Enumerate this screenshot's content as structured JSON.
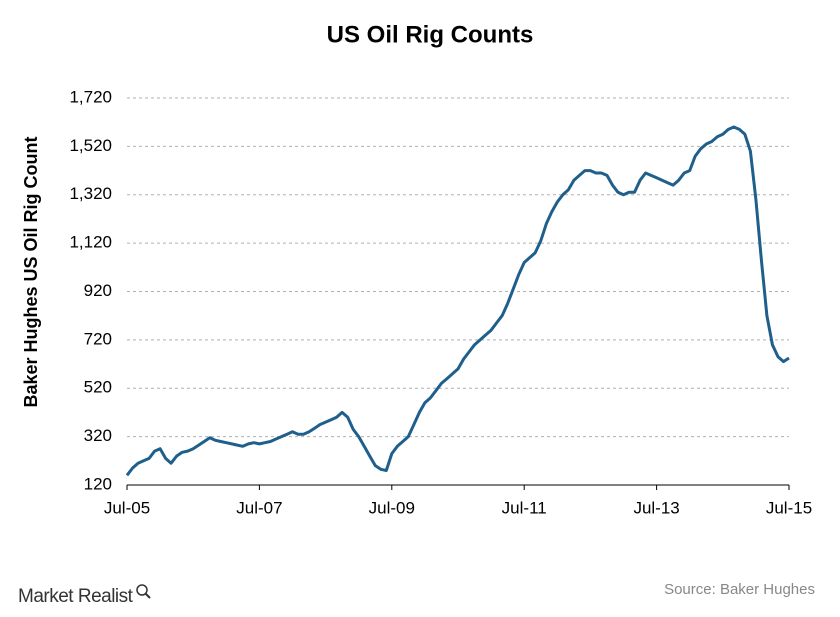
{
  "chart_data": {
    "type": "line",
    "title": "US Oil Rig Counts",
    "y_label": "Baker Hughes US Oil Rig Count",
    "x": [
      "2005-07",
      "2005-08",
      "2005-09",
      "2005-10",
      "2005-11",
      "2005-12",
      "2006-01",
      "2006-02",
      "2006-03",
      "2006-04",
      "2006-05",
      "2006-06",
      "2006-07",
      "2006-08",
      "2006-09",
      "2006-10",
      "2006-11",
      "2006-12",
      "2007-01",
      "2007-02",
      "2007-03",
      "2007-04",
      "2007-05",
      "2007-06",
      "2007-07",
      "2007-08",
      "2007-09",
      "2007-10",
      "2007-11",
      "2007-12",
      "2008-01",
      "2008-02",
      "2008-03",
      "2008-04",
      "2008-05",
      "2008-06",
      "2008-07",
      "2008-08",
      "2008-09",
      "2008-10",
      "2008-11",
      "2008-12",
      "2009-01",
      "2009-02",
      "2009-03",
      "2009-04",
      "2009-05",
      "2009-06",
      "2009-07",
      "2009-08",
      "2009-09",
      "2009-10",
      "2009-11",
      "2009-12",
      "2010-01",
      "2010-02",
      "2010-03",
      "2010-04",
      "2010-05",
      "2010-06",
      "2010-07",
      "2010-08",
      "2010-09",
      "2010-10",
      "2010-11",
      "2010-12",
      "2011-01",
      "2011-02",
      "2011-03",
      "2011-04",
      "2011-05",
      "2011-06",
      "2011-07",
      "2011-08",
      "2011-09",
      "2011-10",
      "2011-11",
      "2011-12",
      "2012-01",
      "2012-02",
      "2012-03",
      "2012-04",
      "2012-05",
      "2012-06",
      "2012-07",
      "2012-08",
      "2012-09",
      "2012-10",
      "2012-11",
      "2012-12",
      "2013-01",
      "2013-02",
      "2013-03",
      "2013-04",
      "2013-05",
      "2013-06",
      "2013-07",
      "2013-08",
      "2013-09",
      "2013-10",
      "2013-11",
      "2013-12",
      "2014-01",
      "2014-02",
      "2014-03",
      "2014-04",
      "2014-05",
      "2014-06",
      "2014-07",
      "2014-08",
      "2014-09",
      "2014-10",
      "2014-11",
      "2014-12",
      "2015-01",
      "2015-02",
      "2015-03",
      "2015-04",
      "2015-05",
      "2015-06",
      "2015-07"
    ],
    "series": [
      {
        "name": "Baker Hughes US Oil Rig Count",
        "color": "#1f5f8b",
        "values": [
          160,
          190,
          210,
          220,
          230,
          260,
          270,
          230,
          210,
          240,
          255,
          260,
          270,
          285,
          300,
          315,
          305,
          300,
          295,
          290,
          285,
          280,
          290,
          295,
          290,
          295,
          300,
          310,
          320,
          330,
          340,
          330,
          330,
          340,
          355,
          370,
          380,
          390,
          400,
          420,
          400,
          350,
          320,
          280,
          240,
          200,
          185,
          180,
          250,
          280,
          300,
          320,
          370,
          420,
          460,
          480,
          510,
          540,
          560,
          580,
          600,
          640,
          670,
          700,
          720,
          740,
          760,
          790,
          820,
          870,
          930,
          990,
          1040,
          1060,
          1080,
          1130,
          1200,
          1250,
          1290,
          1320,
          1340,
          1380,
          1400,
          1420,
          1420,
          1410,
          1410,
          1400,
          1360,
          1330,
          1320,
          1330,
          1330,
          1380,
          1410,
          1400,
          1390,
          1380,
          1370,
          1360,
          1380,
          1410,
          1420,
          1480,
          1510,
          1530,
          1540,
          1560,
          1570,
          1590,
          1600,
          1590,
          1570,
          1500,
          1300,
          1050,
          820,
          700,
          650,
          630,
          645
        ]
      }
    ],
    "ylim": [
      120,
      1720
    ],
    "yticks": [
      120,
      320,
      520,
      720,
      920,
      {
        "value": 1120,
        "label": "1,120"
      },
      {
        "value": 1320,
        "label": "1,320"
      },
      {
        "value": 1520,
        "label": "1,520"
      },
      {
        "value": 1720,
        "label": "1,720"
      }
    ],
    "xlim": [
      "2005-07",
      "2015-07"
    ],
    "xticks": [
      {
        "value": "2005-07",
        "label": "Jul-05"
      },
      {
        "value": "2007-07",
        "label": "Jul-07"
      },
      {
        "value": "2009-07",
        "label": "Jul-09"
      },
      {
        "value": "2011-07",
        "label": "Jul-11"
      },
      {
        "value": "2013-07",
        "label": "Jul-13"
      },
      {
        "value": "2015-07",
        "label": "Jul-15"
      }
    ],
    "grid": true,
    "source": "Source: Baker Hughes",
    "brand": "Market Realist"
  }
}
